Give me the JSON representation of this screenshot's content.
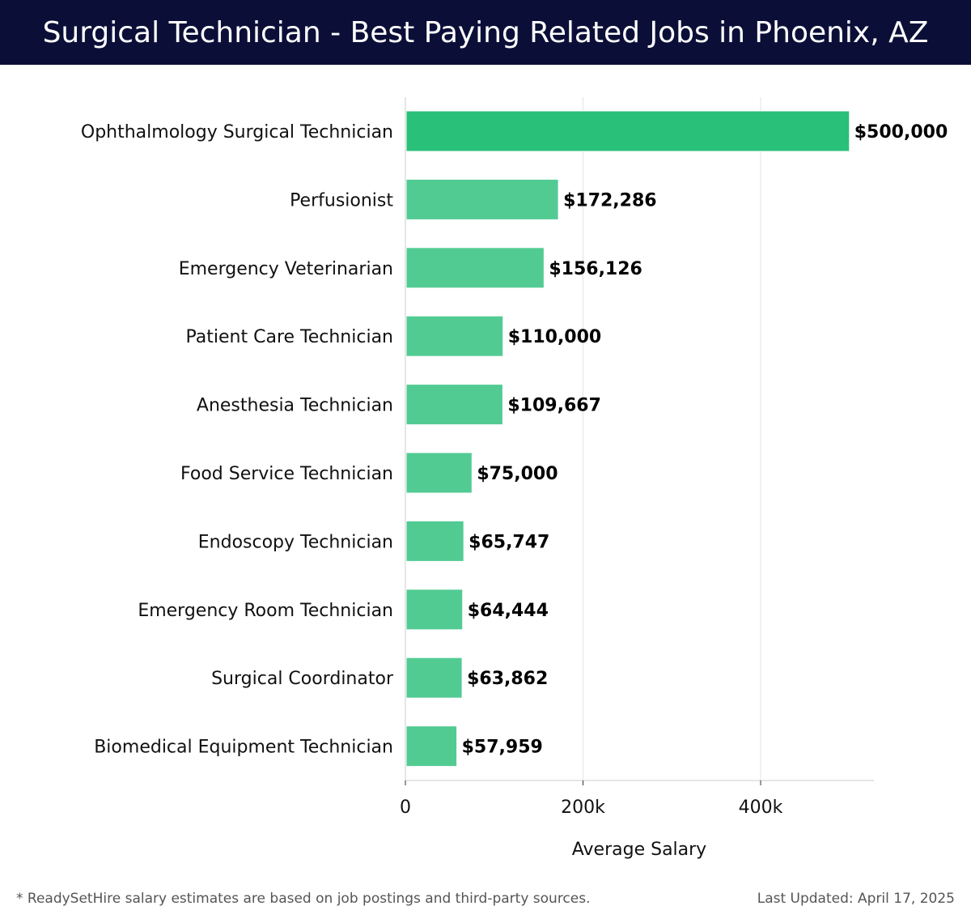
{
  "header": {
    "title": "Surgical Technician - Best Paying Related Jobs in Phoenix, AZ"
  },
  "chart_data": {
    "type": "bar",
    "orientation": "horizontal",
    "title": "Surgical Technician - Best Paying Related Jobs in Phoenix, AZ",
    "xlabel": "Average Salary",
    "ylabel": "",
    "xlim": [
      0,
      525000
    ],
    "x_ticks": [
      0,
      200000,
      400000
    ],
    "x_tick_labels": [
      "0",
      "200k",
      "400k"
    ],
    "grid": true,
    "categories": [
      "Ophthalmology Surgical Technician",
      "Perfusionist",
      "Emergency Veterinarian",
      "Patient Care Technician",
      "Anesthesia Technician",
      "Food Service Technician",
      "Endoscopy Technician",
      "Emergency Room Technician",
      "Surgical Coordinator",
      "Biomedical Equipment Technician"
    ],
    "values": [
      500000,
      172286,
      156126,
      110000,
      109667,
      75000,
      65747,
      64444,
      63862,
      57959
    ],
    "value_labels": [
      "$500,000",
      "$172,286",
      "$156,126",
      "$110,000",
      "$109,667",
      "$75,000",
      "$65,747",
      "$64,444",
      "$63,862",
      "$57,959"
    ],
    "colors": {
      "top_bar": "#29c07a",
      "bar": "#52cb93",
      "grid": "#e3e3e3",
      "axis": "#cccccc"
    }
  },
  "footer": {
    "note": "* ReadySetHire salary estimates are based on job postings and third-party sources.",
    "updated": "Last Updated: April 17, 2025"
  }
}
